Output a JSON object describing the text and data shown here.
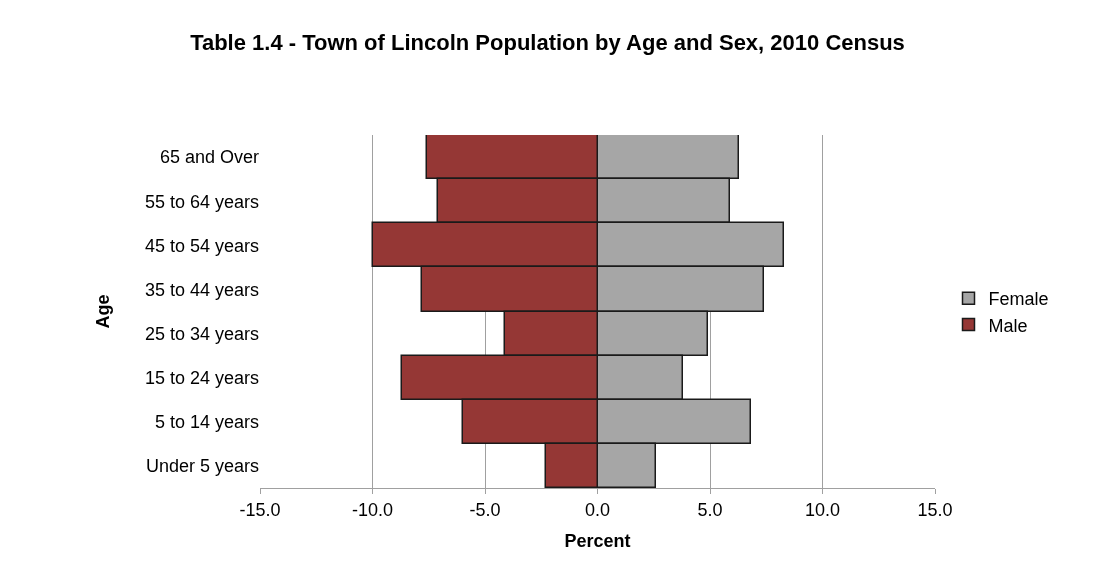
{
  "chart_data": {
    "type": "bar",
    "orientation": "horizontal",
    "stacked": true,
    "title": "Table 1.4 - Town of Lincoln Population by Age and Sex, 2010 Census",
    "xlabel": "Percent",
    "ylabel": "Age",
    "categories": [
      "65 and Over",
      "55 to 64 years",
      "45 to 54 years",
      "35 to 44 years",
      "25 to 34 years",
      "15 to 24 years",
      "5 to 14 years",
      "Under 5 years"
    ],
    "series": [
      {
        "name": "Female",
        "color": "#a6a6a6",
        "values": [
          6.3,
          5.9,
          8.3,
          7.4,
          4.9,
          3.8,
          6.8,
          2.6
        ]
      },
      {
        "name": "Male",
        "color": "#953735",
        "values": [
          -7.6,
          -7.1,
          -10.0,
          -7.8,
          -4.1,
          -8.7,
          -6.0,
          -2.3
        ]
      }
    ],
    "xlim": [
      -15,
      15
    ],
    "xticks": [
      {
        "value": -15,
        "label": "-15.0"
      },
      {
        "value": -10,
        "label": "-10.0"
      },
      {
        "value": -5,
        "label": "-5.0"
      },
      {
        "value": 0,
        "label": "0.0"
      },
      {
        "value": 5,
        "label": "5.0"
      },
      {
        "value": 10,
        "label": "10.0"
      },
      {
        "value": 15,
        "label": "15.0"
      }
    ],
    "grid": "x",
    "legend": "right"
  }
}
